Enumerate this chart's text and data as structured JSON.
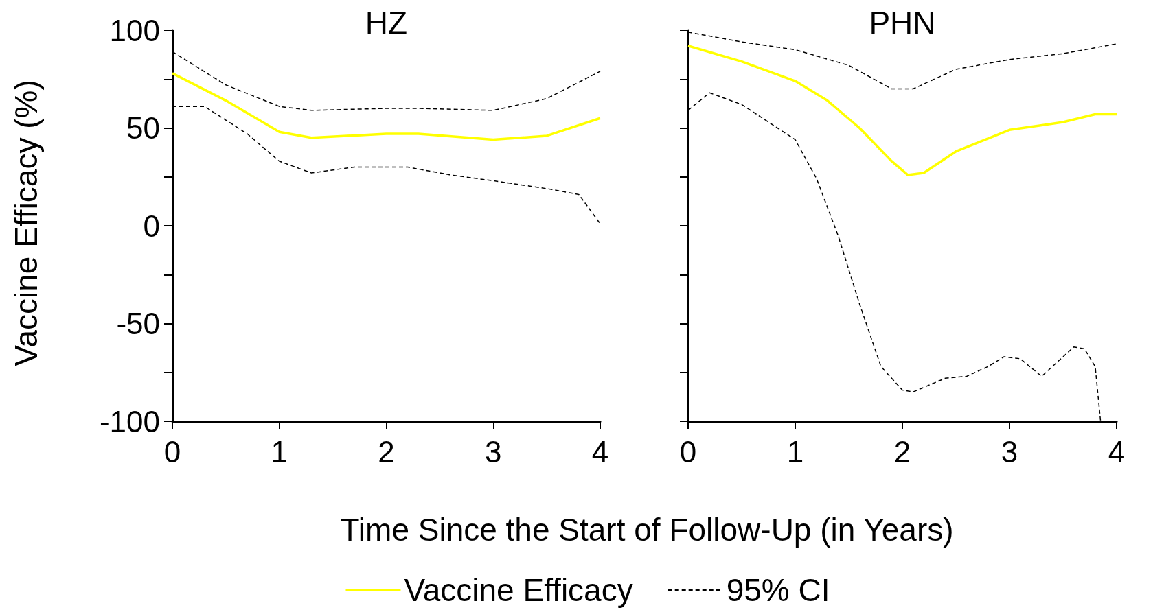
{
  "chart_data": [
    {
      "type": "line",
      "title": "HZ",
      "xlabel": "Time Since the Start of Follow-Up (in Years)",
      "ylabel": "Vaccine Efficacy (%)",
      "xlim": [
        0,
        4
      ],
      "xticks": [
        0,
        1,
        2,
        3,
        4
      ],
      "ylim": [
        -100,
        100
      ],
      "yticks": [
        -100,
        {
          "value": -75,
          "label": null
        },
        -50,
        {
          "value": -25,
          "label": null
        },
        0,
        {
          "value": 25,
          "label": null
        },
        50,
        {
          "value": 75,
          "label": null
        },
        100
      ],
      "grid": false,
      "legend": "bottom",
      "ref_lines": [
        {
          "axis": "y",
          "value": 20,
          "color": "#000000",
          "line_style": "solid"
        }
      ],
      "series": [
        {
          "name": "Vaccine Efficacy",
          "color": "#ffff00",
          "line_style": "solid",
          "x": [
            0,
            0.5,
            1,
            1.3,
            2,
            2.3,
            3,
            3.5,
            4
          ],
          "values": [
            78,
            64,
            48,
            45,
            47,
            47,
            44,
            46,
            55
          ]
        },
        {
          "name": "95% CI",
          "color": "#000000",
          "line_style": "dashed",
          "x": [
            0,
            0.5,
            1,
            1.3,
            2,
            2.3,
            3,
            3.5,
            4
          ],
          "values": [
            89,
            72,
            61,
            59,
            60,
            60,
            59,
            65,
            79
          ]
        },
        {
          "color": "#000000",
          "line_style": "dashed",
          "x": [
            0,
            0.3,
            0.7,
            1,
            1.3,
            1.7,
            2.2,
            2.6,
            3,
            3.5,
            3.8,
            4
          ],
          "values": [
            61,
            61,
            47,
            33,
            27,
            30,
            30,
            26,
            23,
            19,
            16,
            1
          ]
        }
      ]
    },
    {
      "type": "line",
      "title": "PHN",
      "xlim": [
        0,
        4
      ],
      "xticks": [
        0,
        1,
        2,
        3,
        4
      ],
      "ylim": [
        -100,
        100
      ],
      "yticks": [
        -100,
        {
          "value": -75,
          "label": null
        },
        -50,
        {
          "value": -25,
          "label": null
        },
        0,
        {
          "value": 25,
          "label": null
        },
        50,
        {
          "value": 75,
          "label": null
        },
        100
      ],
      "grid": false,
      "tick_labels": "x",
      "ref_lines": [
        {
          "axis": "y",
          "value": 20,
          "color": "#000000",
          "line_style": "solid"
        }
      ],
      "series": [
        {
          "color": "#ffff00",
          "line_style": "solid",
          "x": [
            0,
            0.5,
            1,
            1.3,
            1.6,
            1.9,
            2.05,
            2.2,
            2.5,
            3,
            3.5,
            3.8,
            4
          ],
          "values": [
            92,
            84,
            74,
            64,
            50,
            33,
            26,
            27,
            38,
            49,
            53,
            57,
            57
          ]
        },
        {
          "color": "#000000",
          "line_style": "dashed",
          "x": [
            0,
            0.5,
            1,
            1.5,
            1.9,
            2.1,
            2.5,
            3,
            3.5,
            4
          ],
          "values": [
            99,
            94,
            90,
            82,
            70,
            70,
            80,
            85,
            88,
            93
          ]
        },
        {
          "color": "#000000",
          "line_style": "dashed",
          "x": [
            0,
            0.2,
            0.5,
            1,
            1.2,
            1.4,
            1.6,
            1.8,
            2,
            2.1,
            2.4,
            2.6,
            2.8,
            2.95,
            3.1,
            3.3,
            3.6,
            3.7,
            3.8,
            3.85
          ],
          "values": [
            59,
            68,
            62,
            44,
            24,
            -5,
            -40,
            -72,
            -84,
            -85,
            -78,
            -77,
            -72,
            -67,
            -68,
            -77,
            -62,
            -63,
            -72,
            -100
          ]
        }
      ]
    }
  ]
}
